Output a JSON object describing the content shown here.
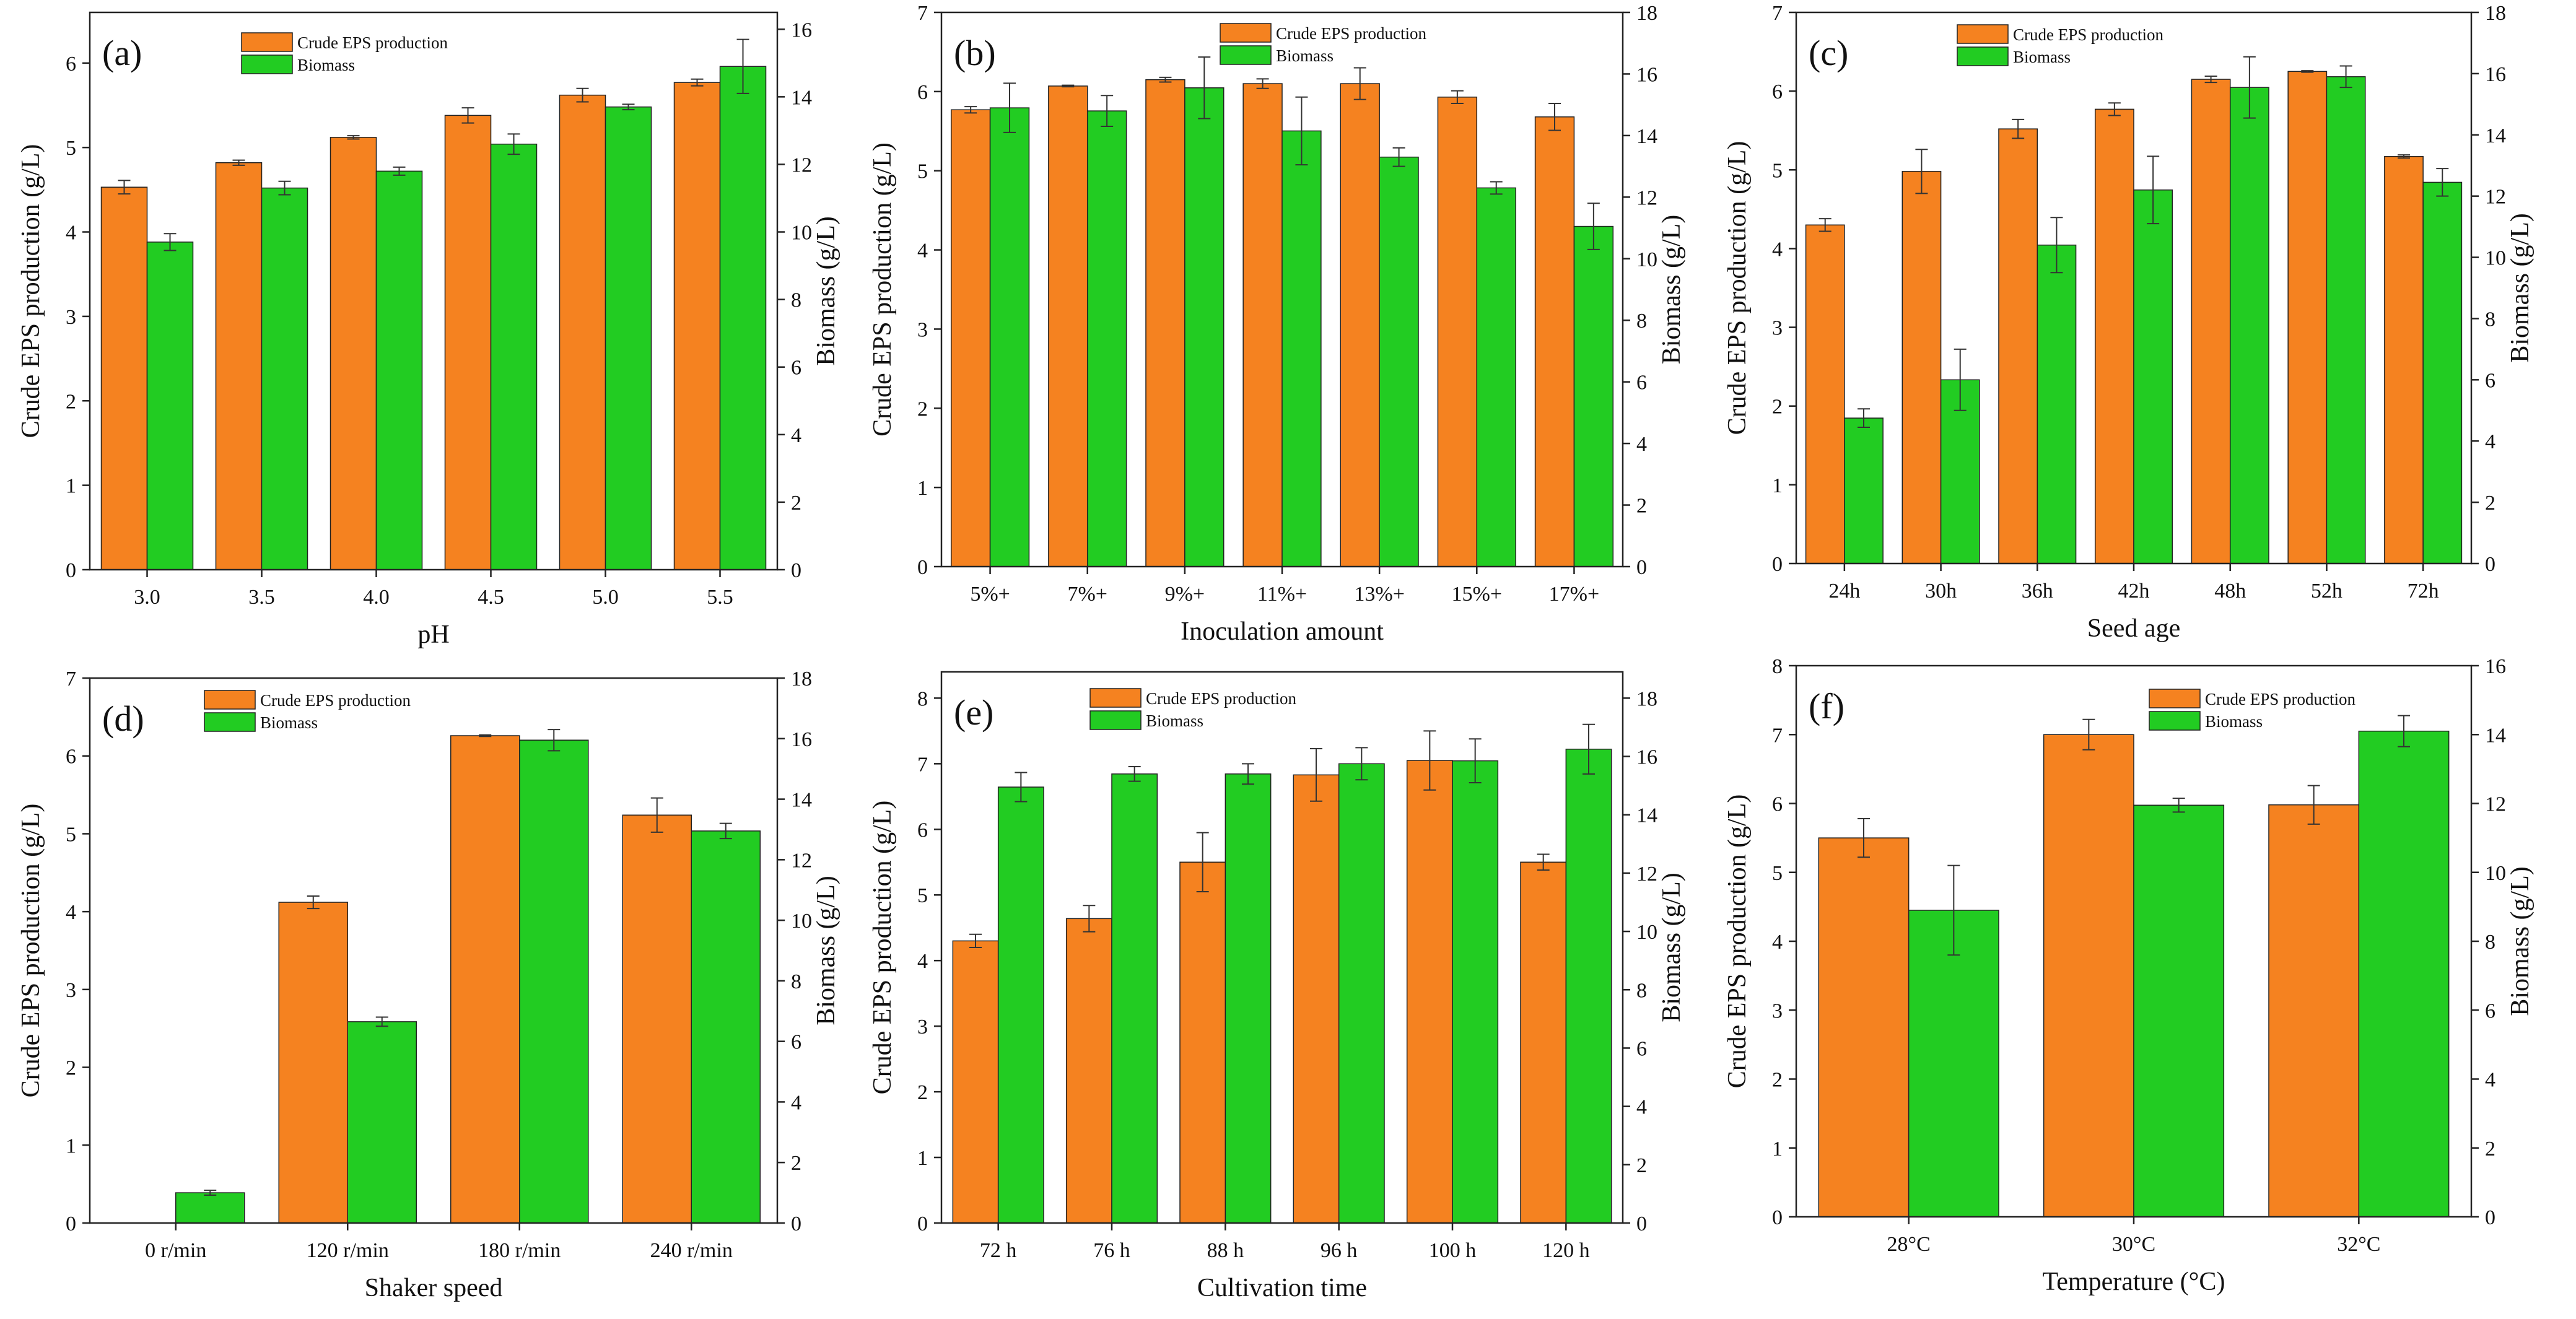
{
  "chart_data": [
    {
      "panel": "(a)",
      "type": "bar",
      "xlabel": "pH",
      "ylabel": "Crude EPS production (g/L)",
      "y2label": "Biomass (g/L)",
      "categories": [
        "3.0",
        "3.5",
        "4.0",
        "4.5",
        "5.0",
        "5.5"
      ],
      "ylim": [
        0,
        6.6
      ],
      "yticks": [
        0,
        1,
        2,
        3,
        4,
        5,
        6
      ],
      "y2lim": [
        0,
        16.5
      ],
      "y2ticks": [
        0,
        2,
        4,
        6,
        8,
        10,
        12,
        14,
        16
      ],
      "series": [
        {
          "name": "Crude EPS production",
          "axis": "left",
          "color": "#F58220",
          "values": [
            4.53,
            4.82,
            5.12,
            5.38,
            5.62,
            5.77
          ],
          "errors": [
            0.08,
            0.03,
            0.02,
            0.09,
            0.08,
            0.04
          ]
        },
        {
          "name": "Biomass",
          "axis": "right",
          "color": "#22CC22",
          "values": [
            9.7,
            11.3,
            11.8,
            12.6,
            13.7,
            14.9
          ],
          "errors": [
            0.25,
            0.2,
            0.12,
            0.3,
            0.08,
            0.8
          ]
        }
      ]
    },
    {
      "panel": "(b)",
      "type": "bar",
      "xlabel": "Inoculation amount",
      "ylabel": "Crude EPS production (g/L)",
      "y2label": "Biomass (g/L)",
      "categories": [
        "5%+",
        "7%+",
        "9%+",
        "11%+",
        "13%+",
        "15%+",
        "17%+"
      ],
      "ylim": [
        0,
        7
      ],
      "yticks": [
        0,
        1,
        2,
        3,
        4,
        5,
        6,
        7
      ],
      "y2lim": [
        0,
        18
      ],
      "y2ticks": [
        0,
        2,
        4,
        6,
        8,
        10,
        12,
        14,
        16,
        18
      ],
      "series": [
        {
          "name": "Crude EPS production",
          "axis": "left",
          "color": "#F58220",
          "values": [
            5.77,
            6.07,
            6.15,
            6.1,
            6.1,
            5.93,
            5.68
          ],
          "errors": [
            0.04,
            0.01,
            0.03,
            0.06,
            0.2,
            0.08,
            0.17
          ]
        },
        {
          "name": "Biomass",
          "axis": "right",
          "color": "#22CC22",
          "values": [
            14.9,
            14.8,
            15.55,
            14.15,
            13.3,
            12.3,
            11.05
          ],
          "errors": [
            0.8,
            0.5,
            1.0,
            1.1,
            0.3,
            0.2,
            0.75
          ]
        }
      ]
    },
    {
      "panel": "(c)",
      "type": "bar",
      "xlabel": "Seed age",
      "ylabel": "Crude EPS production (g/L)",
      "y2label": "Biomass (g/L)",
      "categories": [
        "24h",
        "30h",
        "36h",
        "42h",
        "48h",
        "52h",
        "72h"
      ],
      "ylim": [
        0,
        7
      ],
      "yticks": [
        0,
        1,
        2,
        3,
        4,
        5,
        6,
        7
      ],
      "y2lim": [
        0,
        18
      ],
      "y2ticks": [
        0,
        2,
        4,
        6,
        8,
        10,
        12,
        14,
        16,
        18
      ],
      "series": [
        {
          "name": "Crude EPS production",
          "axis": "left",
          "color": "#F58220",
          "values": [
            4.3,
            4.98,
            5.52,
            5.77,
            6.15,
            6.25,
            5.17
          ],
          "errors": [
            0.08,
            0.28,
            0.12,
            0.08,
            0.04,
            0.01,
            0.02
          ]
        },
        {
          "name": "Biomass",
          "axis": "right",
          "color": "#22CC22",
          "values": [
            4.75,
            6.0,
            10.4,
            12.2,
            15.55,
            15.9,
            12.45
          ],
          "errors": [
            0.3,
            1.0,
            0.9,
            1.1,
            1.0,
            0.35,
            0.45
          ]
        }
      ]
    },
    {
      "panel": "(d)",
      "type": "bar",
      "xlabel": "Shaker speed",
      "ylabel": "Crude EPS production (g/L)",
      "y2label": "Biomass (g/L)",
      "categories": [
        "0 r/min",
        "120 r/min",
        "180 r/min",
        "240 r/min"
      ],
      "ylim": [
        0,
        7
      ],
      "yticks": [
        0,
        1,
        2,
        3,
        4,
        5,
        6,
        7
      ],
      "y2lim": [
        0,
        18
      ],
      "y2ticks": [
        0,
        2,
        4,
        6,
        8,
        10,
        12,
        14,
        16,
        18
      ],
      "series": [
        {
          "name": "Crude EPS production",
          "axis": "left",
          "color": "#F58220",
          "values": [
            0,
            4.12,
            6.26,
            5.24
          ],
          "errors": [
            0,
            0.08,
            0.01,
            0.22
          ]
        },
        {
          "name": "Biomass",
          "axis": "right",
          "color": "#22CC22",
          "values": [
            1.0,
            6.65,
            15.95,
            12.95
          ],
          "errors": [
            0.08,
            0.15,
            0.35,
            0.25
          ]
        }
      ]
    },
    {
      "panel": "(e)",
      "type": "bar",
      "xlabel": "Cultivation time",
      "ylabel": "Crude EPS production (g/L)",
      "y2label": "Biomass (g/L)",
      "categories": [
        "72 h",
        "76 h",
        "88 h",
        "96 h",
        "100 h",
        "120 h"
      ],
      "ylim": [
        0,
        8.4
      ],
      "yticks": [
        0,
        1,
        2,
        3,
        4,
        5,
        6,
        7,
        8
      ],
      "y2lim": [
        0,
        18.9
      ],
      "y2ticks": [
        0,
        2,
        4,
        6,
        8,
        10,
        12,
        14,
        16,
        18
      ],
      "series": [
        {
          "name": "Crude EPS production",
          "axis": "left",
          "color": "#F58220",
          "values": [
            4.3,
            4.64,
            5.5,
            6.83,
            7.05,
            5.5
          ],
          "errors": [
            0.1,
            0.2,
            0.45,
            0.4,
            0.45,
            0.12
          ]
        },
        {
          "name": "Biomass",
          "axis": "right",
          "color": "#22CC22",
          "values": [
            14.95,
            15.4,
            15.4,
            15.75,
            15.85,
            16.25
          ],
          "errors": [
            0.5,
            0.25,
            0.35,
            0.55,
            0.75,
            0.85
          ]
        }
      ]
    },
    {
      "panel": "(f)",
      "type": "bar",
      "xlabel": "Temperature (°C)",
      "ylabel": "Crude EPS production (g/L)",
      "y2label": "Biomass (g/L)",
      "categories": [
        "28°C",
        "30°C",
        "32°C"
      ],
      "ylim": [
        0,
        8
      ],
      "yticks": [
        0,
        1,
        2,
        3,
        4,
        5,
        6,
        7,
        8
      ],
      "y2lim": [
        0,
        16
      ],
      "y2ticks": [
        0,
        2,
        4,
        6,
        8,
        10,
        12,
        14,
        16
      ],
      "series": [
        {
          "name": "Crude EPS production",
          "axis": "left",
          "color": "#F58220",
          "values": [
            5.5,
            7.0,
            5.98
          ],
          "errors": [
            0.28,
            0.22,
            0.28
          ]
        },
        {
          "name": "Biomass",
          "axis": "right",
          "color": "#22CC22",
          "values": [
            8.9,
            11.95,
            14.1
          ],
          "errors": [
            1.3,
            0.2,
            0.45
          ]
        }
      ]
    }
  ]
}
